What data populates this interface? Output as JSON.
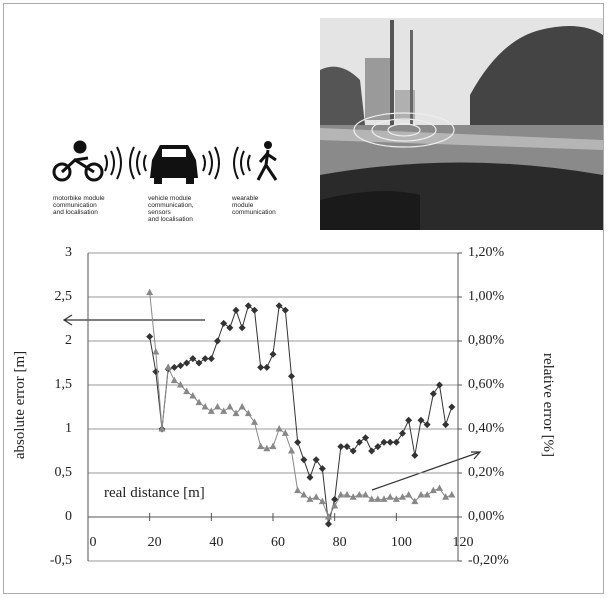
{
  "modules": [
    {
      "lines": [
        "motorbike module",
        "communication",
        "and localisation"
      ]
    },
    {
      "lines": [
        "vehicle module",
        "communication,",
        "sensors",
        "and localisation"
      ]
    },
    {
      "lines": [
        "wearable",
        "module",
        "communication"
      ]
    }
  ],
  "chart_data": {
    "type": "line",
    "y_label": "absolute error [m]",
    "y2_label": "relative error [%]",
    "annotation": "real distance [m]",
    "x": [
      20,
      22,
      24,
      26,
      28,
      30,
      32,
      34,
      36,
      38,
      40,
      42,
      44,
      46,
      48,
      50,
      52,
      54,
      56,
      58,
      60,
      62,
      64,
      66,
      68,
      70,
      72,
      74,
      76,
      78,
      80,
      82,
      84,
      86,
      88,
      90,
      92,
      94,
      96,
      98,
      100,
      102,
      104,
      106,
      108,
      110,
      112,
      114,
      116,
      118
    ],
    "series": [
      {
        "color": "#333333",
        "marker": "diamond",
        "axis": "y",
        "values": [
          2.05,
          1.65,
          1.0,
          1.68,
          1.7,
          1.72,
          1.75,
          1.8,
          1.75,
          1.8,
          1.8,
          2.0,
          2.2,
          2.15,
          2.35,
          2.15,
          2.4,
          2.35,
          1.7,
          1.7,
          1.85,
          2.4,
          2.35,
          1.6,
          0.85,
          0.65,
          0.45,
          0.65,
          0.55,
          -0.08,
          0.2,
          0.8,
          0.8,
          0.75,
          0.85,
          0.9,
          0.75,
          0.8,
          0.85,
          0.85,
          0.85,
          0.95,
          1.1,
          0.7,
          1.1,
          1.05,
          1.4,
          1.5,
          1.05,
          1.25
        ]
      },
      {
        "color": "#888888",
        "marker": "triangle",
        "axis": "y2",
        "values": [
          1.02,
          0.75,
          0.4,
          0.68,
          0.62,
          0.6,
          0.57,
          0.55,
          0.52,
          0.5,
          0.48,
          0.5,
          0.48,
          0.5,
          0.47,
          0.5,
          0.47,
          0.43,
          0.32,
          0.31,
          0.32,
          0.4,
          0.38,
          0.3,
          0.12,
          0.1,
          0.08,
          0.09,
          0.07,
          0.0,
          0.05,
          0.1,
          0.1,
          0.09,
          0.1,
          0.1,
          0.08,
          0.08,
          0.08,
          0.09,
          0.08,
          0.09,
          0.1,
          0.07,
          0.1,
          0.1,
          0.12,
          0.13,
          0.09,
          0.1
        ]
      }
    ],
    "xlim": [
      0,
      120
    ],
    "xticks": [
      0,
      20,
      40,
      60,
      80,
      100,
      120
    ],
    "ylim": [
      -0.5,
      3
    ],
    "yticks": [
      {
        "value": -0.5,
        "label": "-0,5"
      },
      0,
      {
        "value": 0.5,
        "label": "0,5"
      },
      1,
      {
        "value": 1.5,
        "label": "1,5"
      },
      2,
      {
        "value": 2.5,
        "label": "2,5"
      },
      3
    ],
    "y2lim": [
      -0.2,
      1.2
    ],
    "y2ticks": [
      {
        "value": -0.2,
        "label": "-0,20%"
      },
      {
        "value": 0,
        "label": "0,00%"
      },
      {
        "value": 0.2,
        "label": "0,20%"
      },
      {
        "value": 0.4,
        "label": "0,40%"
      },
      {
        "value": 0.6,
        "label": "0,60%"
      },
      {
        "value": 0.8,
        "label": "0,80%"
      },
      {
        "value": 1.0,
        "label": "1,00%"
      },
      {
        "value": 1.2,
        "label": "1,20%"
      }
    ],
    "grid": true
  }
}
